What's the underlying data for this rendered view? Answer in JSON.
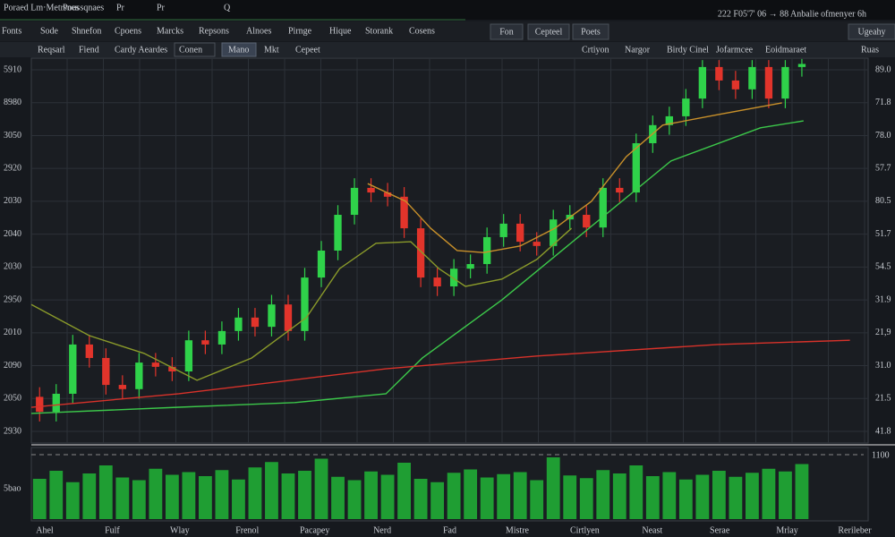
{
  "topbar": {
    "items": [
      "Poraed Lm·Metrsnes",
      "Poussqnaes",
      "Pr",
      "Pr",
      "Q"
    ],
    "right": "222 F05'7' 06 → 88 Anbalie ofmenyer 6h"
  },
  "menu": {
    "items": [
      "Fonts",
      "Sode",
      "Shnefon",
      "Cpoens",
      "Marcks",
      "Repsons",
      "Alnoes",
      "Pirnge",
      "Hique",
      "Storank",
      "Cosens"
    ],
    "right": [
      "Fon",
      "Cepteel",
      "Poets",
      "Ugeahy"
    ]
  },
  "toolbar": {
    "items": [
      "Reqsarl",
      "Fiend",
      "Cardy Aeardes",
      "Conen",
      "Mano",
      "Mkt",
      "Cepeet"
    ],
    "right": [
      "Crtiyon",
      "Nargor",
      "Birdy Cinel",
      "Jofarmcee",
      "Eoidmaraet",
      "Ruas"
    ]
  },
  "chart_data": {
    "type": "candlestick",
    "xlim": [
      -0.5,
      50
    ],
    "ylim": [
      0,
      100
    ],
    "up_color": "#2fd24a",
    "down_color": "#e2342b",
    "open": [
      12.0,
      8.1,
      12.8,
      25.6,
      22.1,
      15.1,
      14.0,
      20.9,
      19.8,
      18.6,
      26.7,
      25.6,
      29.1,
      32.6,
      30.2,
      36.0,
      29.1,
      43.0,
      50.0,
      59.3,
      66.3,
      65.1,
      64.0,
      55.8,
      43.0,
      40.7,
      45.3,
      46.5,
      53.5,
      57.0,
      52.3,
      51.2,
      58.1,
      59.3,
      56.0,
      66.3,
      65.1,
      77.9,
      82.6,
      84.9,
      89.5,
      97.7,
      94.2,
      91.9,
      97.7,
      89.5,
      97.7
    ],
    "high": [
      14.5,
      15.3,
      28.1,
      28.1,
      24.6,
      17.6,
      23.4,
      23.4,
      22.3,
      29.2,
      29.2,
      31.6,
      35.1,
      35.1,
      38.5,
      38.5,
      45.5,
      52.5,
      61.8,
      68.8,
      68.8,
      67.6,
      66.5,
      58.3,
      45.5,
      47.8,
      49.0,
      56.0,
      59.5,
      59.5,
      54.8,
      60.6,
      61.8,
      61.8,
      68.8,
      68.8,
      80.4,
      85.1,
      87.4,
      92.0,
      99.5,
      99.5,
      96.7,
      99.5,
      99.5,
      99.5,
      99.8
    ],
    "low": [
      5.6,
      5.6,
      10.3,
      19.6,
      12.6,
      11.5,
      11.5,
      17.3,
      16.1,
      16.1,
      23.1,
      23.1,
      26.6,
      27.7,
      27.7,
      26.6,
      26.6,
      40.5,
      47.5,
      56.8,
      62.6,
      61.5,
      53.3,
      40.5,
      38.2,
      38.2,
      42.8,
      44.0,
      51.0,
      49.8,
      48.7,
      48.7,
      55.6,
      53.5,
      53.5,
      62.6,
      62.6,
      75.4,
      80.1,
      82.4,
      87.0,
      91.7,
      89.4,
      89.4,
      87.0,
      87.0,
      95.2
    ],
    "close": [
      8.1,
      12.8,
      25.6,
      22.1,
      15.1,
      14.0,
      20.9,
      19.8,
      18.6,
      26.7,
      25.6,
      29.1,
      32.6,
      30.2,
      36.0,
      29.1,
      43.0,
      50.0,
      59.3,
      66.3,
      65.1,
      64.0,
      55.8,
      43.0,
      40.7,
      45.3,
      46.5,
      53.5,
      57.0,
      52.3,
      51.2,
      58.1,
      59.3,
      56.0,
      66.3,
      65.1,
      77.9,
      82.6,
      84.9,
      89.5,
      97.7,
      94.2,
      91.9,
      97.7,
      89.5,
      97.7,
      98.5
    ],
    "series": [
      {
        "color": "#c8902a",
        "x": [
          19.8,
          22.1,
          23.6,
          25.2,
          26.8,
          29,
          31.1,
          33.3,
          35.4,
          37.6,
          40.9,
          44.8
        ],
        "values": [
          67.4,
          62.8,
          55.8,
          50,
          49.5,
          51.2,
          55.8,
          62.8,
          74.4,
          82.6,
          85.3,
          88.4
        ]
      },
      {
        "color": "#8a9a2a",
        "x": [
          -0.5,
          3,
          6.3,
          9.5,
          12.8,
          16.1,
          18.1,
          20.3,
          22.4,
          24.1,
          25.7,
          27.9,
          30,
          32.1
        ],
        "values": [
          36,
          27.9,
          23.3,
          16.3,
          22.1,
          32.6,
          45.3,
          51.9,
          52.3,
          45.3,
          40.7,
          42.6,
          47.7,
          55.8
        ]
      },
      {
        "color": "#3cc84a",
        "x": [
          -0.5,
          8.4,
          15.4,
          20.9,
          23.1,
          27.9,
          32.7,
          38.1,
          43.5,
          46.1
        ],
        "values": [
          7.7,
          9.3,
          10.5,
          12.8,
          22.1,
          37.2,
          54.2,
          73.3,
          81.9,
          83.7
        ]
      },
      {
        "color": "#d8322a",
        "x": [
          -0.5,
          8.4,
          20.9,
          30,
          40.9,
          48.9
        ],
        "values": [
          9.3,
          12.8,
          19.3,
          22.6,
          25.6,
          26.7
        ]
      }
    ],
    "left_axis_labels": [
      "5910",
      "8980",
      "3050",
      "2920",
      "2030",
      "2040",
      "2030",
      "2950",
      "2010",
      "2090",
      "2050",
      "2930"
    ],
    "right_axis_labels": [
      "89.0",
      "71.8",
      "78.0",
      "57.7",
      "80.5",
      "51.7",
      "54.5",
      "31.9",
      "21,9",
      "31.0",
      "21.5",
      "41.8"
    ],
    "x_labels": [
      "Ahel",
      "Fulf",
      "Wlay",
      "Frenol",
      "Pacapey",
      "Nerd",
      "Fad",
      "Mistre",
      "Cirtlyen",
      "Neast",
      "Serae",
      "Mrlay",
      "Rerileber"
    ],
    "volume": {
      "ylim": [
        0,
        100
      ],
      "color": "#1f9e33",
      "label_left": "5bao",
      "label_right": "1100",
      "values": [
        60,
        72,
        55,
        68,
        80,
        62,
        58,
        75,
        66,
        70,
        64,
        73,
        59,
        77,
        85,
        68,
        72,
        90,
        63,
        58,
        71,
        66,
        84,
        60,
        55,
        69,
        74,
        62,
        67,
        70,
        58,
        92,
        65,
        61,
        73,
        68,
        80,
        64,
        70,
        59,
        66,
        72,
        63,
        69,
        75,
        71,
        82
      ]
    }
  }
}
